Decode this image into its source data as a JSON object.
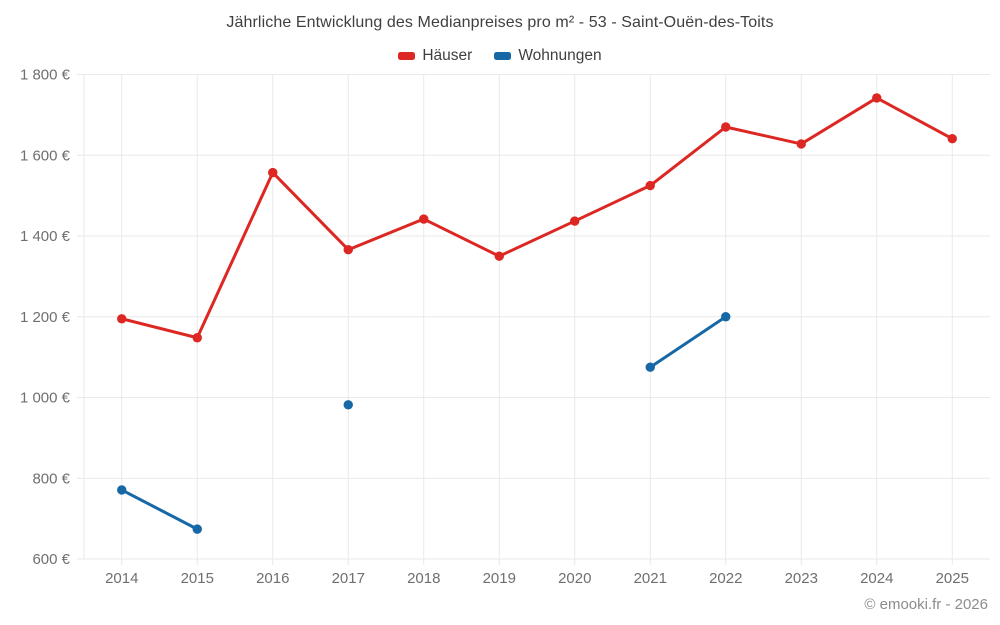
{
  "title": "Jährliche Entwicklung des Medianpreises pro m² - 53 - Saint-Ouën-des-Toits",
  "footer": "© emooki.fr - 2026",
  "colors": {
    "background": "#ffffff",
    "grid": "#e9e9e9",
    "axis_text": "#6f6f6f",
    "title_text": "#3f3f3f",
    "footer_text": "#8c8c8c",
    "hauser_red": "#dc2723",
    "wohnungen_blue": "#1668a6"
  },
  "chart_data": {
    "type": "line",
    "title": "Jährliche Entwicklung des Medianpreises pro m² - 53 - Saint-Ouën-des-Toits",
    "x": [
      2014,
      2015,
      2016,
      2017,
      2018,
      2019,
      2020,
      2021,
      2022,
      2023,
      2024,
      2025
    ],
    "series": [
      {
        "name": "Häuser",
        "color": "#dc2723",
        "values": [
          1195,
          1148,
          1557,
          1366,
          1442,
          1350,
          1437,
          1525,
          1670,
          1628,
          1742,
          1641
        ]
      },
      {
        "name": "Wohnungen",
        "color": "#1668a6",
        "values": [
          771,
          674,
          null,
          982,
          null,
          null,
          null,
          1075,
          1200,
          null,
          null,
          null
        ]
      }
    ],
    "ylim": [
      600,
      1800
    ],
    "ytick_step": 200,
    "ytick_labels": [
      "600 €",
      "800 €",
      "1 000 €",
      "1 200 €",
      "1 400 €",
      "1 600 €",
      "1 800 €"
    ],
    "y_unit": "€",
    "grid": true,
    "legend_position": "top-center"
  }
}
